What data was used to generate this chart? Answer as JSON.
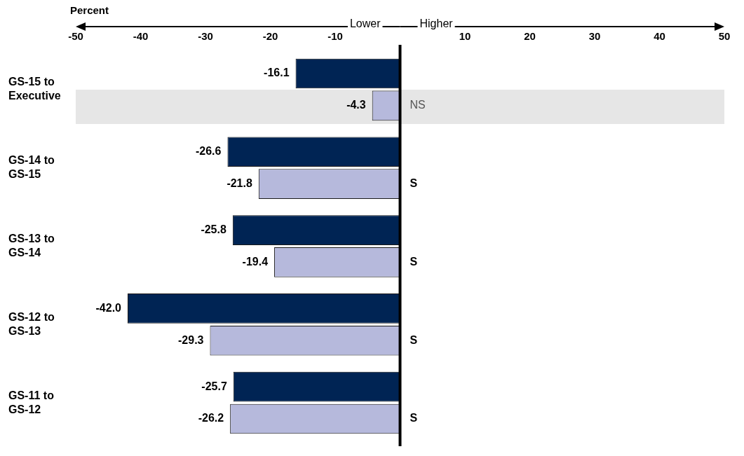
{
  "chart_data": {
    "type": "bar",
    "orientation": "horizontal",
    "xlabel": "Percent",
    "categories": [
      "GS-15 to Executive",
      "GS-14 to GS-15",
      "GS-13 to GS-14",
      "GS-12 to GS-13",
      "GS-11 to GS-12"
    ],
    "series": [
      {
        "color": "#002454",
        "values": [
          -16.1,
          -26.6,
          -25.8,
          -42.0,
          -25.7
        ],
        "value_labels": [
          "-16.1",
          "-26.6",
          "-25.8",
          "-42.0",
          "-25.7"
        ]
      },
      {
        "color": "#b6b9dc",
        "values": [
          -4.3,
          -21.8,
          -19.4,
          -29.3,
          -26.2
        ],
        "value_labels": [
          "-4.3",
          "-21.8",
          "-19.4",
          "-29.3",
          "-26.2"
        ]
      }
    ],
    "ref_lines": [
      {
        "axis": "x",
        "value": 0,
        "color": "#000000"
      }
    ],
    "xlim": [
      -50,
      50
    ],
    "xticks": [
      -50,
      -40,
      -30,
      -20,
      -10,
      10,
      20,
      30,
      40,
      50
    ],
    "grid": false,
    "legend": false,
    "bands": [
      {
        "axis": "y",
        "from": "GS-15 to Executive",
        "to": "GS-15 to Executive",
        "color": "#e6e6e6"
      }
    ],
    "annotations": [
      "Lower",
      "Higher",
      "NS",
      "S",
      "S",
      "S",
      "S"
    ]
  }
}
